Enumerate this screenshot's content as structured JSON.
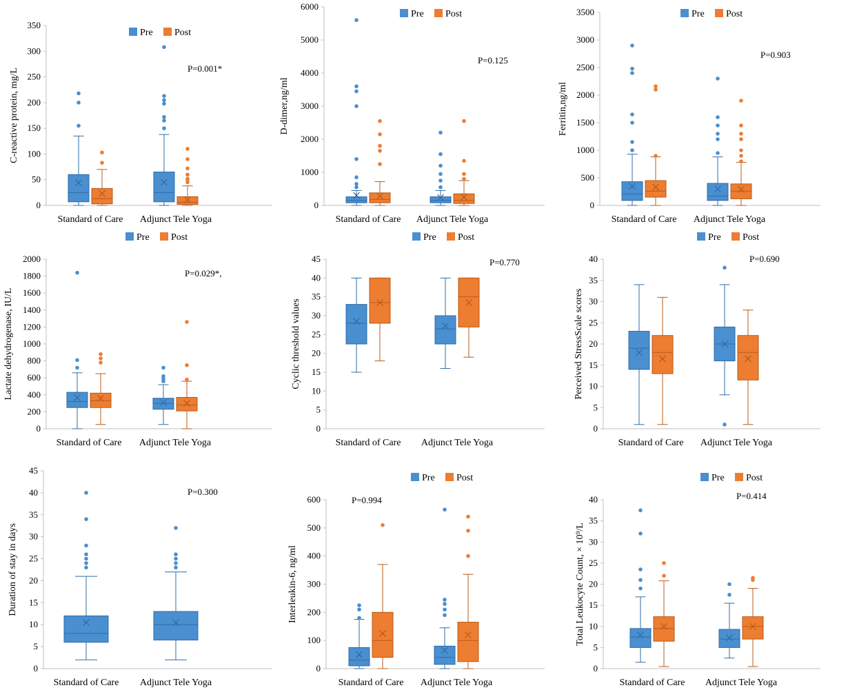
{
  "figure_title": "",
  "colors": {
    "pre": "#4a8fcf",
    "post": "#ed7d31",
    "pre_stroke": "#2e6ca8",
    "post_stroke": "#b85a1a"
  },
  "chart_data": [
    {
      "id": "crp",
      "type": "box",
      "ylabel": "C-reactive protein, mg/L",
      "ylim": [
        0,
        350
      ],
      "yticks": [
        0,
        50,
        100,
        150,
        200,
        250,
        300,
        350
      ],
      "categories": [
        "Standard of Care",
        "Adjunct Tele Yoga"
      ],
      "legend": [
        "Pre",
        "Post"
      ],
      "pvalue": "P=0.001*",
      "series": [
        {
          "name": "Pre",
          "boxes": [
            {
              "min": 0,
              "q1": 7,
              "median": 25,
              "q3": 60,
              "max": 135,
              "mean": 44,
              "outliers": [
                155,
                200,
                218
              ]
            },
            {
              "min": 0,
              "q1": 7,
              "median": 25,
              "q3": 65,
              "max": 138,
              "mean": 45,
              "outliers": [
                150,
                165,
                172,
                198,
                205,
                213,
                308
              ]
            }
          ]
        },
        {
          "name": "Post",
          "boxes": [
            {
              "min": 0,
              "q1": 3,
              "median": 13,
              "q3": 33,
              "max": 70,
              "mean": 23,
              "outliers": [
                83,
                103
              ]
            },
            {
              "min": 0,
              "q1": 2,
              "median": 6,
              "q3": 17,
              "max": 38,
              "mean": 11,
              "outliers": [
                45,
                50,
                52,
                60,
                72,
                90,
                110
              ]
            }
          ]
        }
      ]
    },
    {
      "id": "ddimer",
      "type": "box",
      "ylabel": "D-dimer,ng/ml",
      "ylim": [
        0,
        6000
      ],
      "yticks": [
        0,
        1000,
        2000,
        3000,
        4000,
        5000,
        6000
      ],
      "categories": [
        "Standard of Care",
        "Adjunct Tele Yoga"
      ],
      "legend": [
        "Pre",
        "Post"
      ],
      "pvalue": "P=0.125",
      "series": [
        {
          "name": "Pre",
          "boxes": [
            {
              "min": 0,
              "q1": 80,
              "median": 150,
              "q3": 260,
              "max": 450,
              "mean": 300,
              "outliers": [
                550,
                650,
                850,
                1400,
                3000,
                3450,
                3600,
                5600
              ]
            },
            {
              "min": 0,
              "q1": 80,
              "median": 150,
              "q3": 260,
              "max": 450,
              "mean": 240,
              "outliers": [
                550,
                750,
                950,
                1200,
                1550,
                2200
              ]
            }
          ]
        },
        {
          "name": "Post",
          "boxes": [
            {
              "min": 0,
              "q1": 80,
              "median": 180,
              "q3": 380,
              "max": 720,
              "mean": 280,
              "outliers": [
                1250,
                1650,
                1800,
                2150,
                2550
              ]
            },
            {
              "min": 0,
              "q1": 60,
              "median": 150,
              "q3": 350,
              "max": 750,
              "mean": 250,
              "outliers": [
                800,
                950,
                1350,
                2550
              ]
            }
          ]
        }
      ]
    },
    {
      "id": "ferritin",
      "type": "box",
      "ylabel": "Ferritin,ng/ml",
      "ylim": [
        0,
        3500
      ],
      "yticks": [
        0,
        500,
        1000,
        1500,
        2000,
        2500,
        3000,
        3500
      ],
      "categories": [
        "Standard of Care",
        "Adjunct Tele Yoga"
      ],
      "legend": [
        "Pre",
        "Post"
      ],
      "pvalue": "P=0.903",
      "series": [
        {
          "name": "Pre",
          "boxes": [
            {
              "min": 0,
              "q1": 90,
              "median": 210,
              "q3": 430,
              "max": 930,
              "mean": 350,
              "outliers": [
                1000,
                1150,
                1500,
                1650,
                2400,
                2480,
                2900
              ]
            },
            {
              "min": 0,
              "q1": 90,
              "median": 170,
              "q3": 400,
              "max": 880,
              "mean": 300,
              "outliers": [
                950,
                1200,
                1300,
                1450,
                1600,
                2300
              ]
            }
          ]
        },
        {
          "name": "Post",
          "boxes": [
            {
              "min": 0,
              "q1": 150,
              "median": 260,
              "q3": 450,
              "max": 880,
              "mean": 330,
              "outliers": [
                900,
                2100,
                2160
              ]
            },
            {
              "min": 0,
              "q1": 120,
              "median": 260,
              "q3": 390,
              "max": 780,
              "mean": 290,
              "outliers": [
                800,
                900,
                1000,
                1200,
                1300,
                1450,
                1900
              ]
            }
          ]
        }
      ]
    },
    {
      "id": "ldh",
      "type": "box",
      "ylabel": "Lactate dehydrogenase, IU/L",
      "ylim": [
        0,
        2000
      ],
      "yticks": [
        0,
        200,
        400,
        600,
        800,
        1000,
        1200,
        1400,
        1600,
        1800,
        2000
      ],
      "categories": [
        "Standard of Care",
        "Adjunct Tele Yoga"
      ],
      "legend": [
        "Pre",
        "Post"
      ],
      "pvalue": "P=0.029*,",
      "series": [
        {
          "name": "Pre",
          "boxes": [
            {
              "min": 0,
              "q1": 250,
              "median": 320,
              "q3": 430,
              "max": 660,
              "mean": 365,
              "outliers": [
                720,
                810,
                1840
              ]
            },
            {
              "min": 50,
              "q1": 230,
              "median": 300,
              "q3": 360,
              "max": 520,
              "mean": 310,
              "outliers": [
                560,
                590,
                620,
                720
              ]
            }
          ]
        },
        {
          "name": "Post",
          "boxes": [
            {
              "min": 50,
              "q1": 250,
              "median": 330,
              "q3": 420,
              "max": 650,
              "mean": 360,
              "outliers": [
                780,
                830,
                880
              ]
            },
            {
              "min": 0,
              "q1": 210,
              "median": 280,
              "q3": 370,
              "max": 560,
              "mean": 300,
              "outliers": [
                580,
                750,
                1260
              ]
            }
          ]
        }
      ]
    },
    {
      "id": "ct",
      "type": "box",
      "ylabel": "Cyclic threshold values",
      "ylim": [
        0,
        45
      ],
      "yticks": [
        0,
        5,
        10,
        15,
        20,
        25,
        30,
        35,
        40,
        45
      ],
      "categories": [
        "Standard of Care",
        "Adjunct Tele Yoga"
      ],
      "legend": [
        "Pre",
        "Post"
      ],
      "pvalue": "P=0.770",
      "series": [
        {
          "name": "Pre",
          "boxes": [
            {
              "min": 15,
              "q1": 22.5,
              "median": 28,
              "q3": 33,
              "max": 40,
              "mean": 28.5,
              "outliers": []
            },
            {
              "min": 16,
              "q1": 22.5,
              "median": 26.5,
              "q3": 30,
              "max": 40,
              "mean": 27.3,
              "outliers": []
            }
          ]
        },
        {
          "name": "Post",
          "boxes": [
            {
              "min": 18,
              "q1": 28,
              "median": 33.5,
              "q3": 40,
              "max": 40,
              "mean": 33.5,
              "outliers": []
            },
            {
              "min": 19,
              "q1": 27,
              "median": 35,
              "q3": 40,
              "max": 40,
              "mean": 33.5,
              "outliers": []
            }
          ]
        }
      ]
    },
    {
      "id": "pss",
      "type": "box",
      "ylabel": "Perceived StressScale scores",
      "ylim": [
        0,
        40
      ],
      "yticks": [
        0,
        5,
        10,
        15,
        20,
        25,
        30,
        35,
        40
      ],
      "categories": [
        "Standard of Care",
        "Adjunct Tele Yoga"
      ],
      "legend": [
        "Pre",
        "Post"
      ],
      "pvalue": "P=0.690",
      "series": [
        {
          "name": "Pre",
          "boxes": [
            {
              "min": 1,
              "q1": 14,
              "median": 19,
              "q3": 23,
              "max": 34,
              "mean": 18,
              "outliers": []
            },
            {
              "min": 8,
              "q1": 16,
              "median": 20,
              "q3": 24,
              "max": 34,
              "mean": 20,
              "outliers": [
                1,
                38
              ]
            }
          ]
        },
        {
          "name": "Post",
          "boxes": [
            {
              "min": 1,
              "q1": 13,
              "median": 18,
              "q3": 22,
              "max": 31,
              "mean": 16.5,
              "outliers": []
            },
            {
              "min": 1,
              "q1": 11.5,
              "median": 18,
              "q3": 22,
              "max": 28,
              "mean": 16.5,
              "outliers": []
            }
          ]
        }
      ]
    },
    {
      "id": "stay",
      "type": "box",
      "ylabel": "Duration of stay in days",
      "ylim": [
        0,
        45
      ],
      "yticks": [
        0,
        5,
        10,
        15,
        20,
        25,
        30,
        35,
        40,
        45
      ],
      "categories": [
        "Standard of Care",
        "Adjunct Tele Yoga"
      ],
      "legend": [],
      "pvalue": "P=0.300",
      "series": [
        {
          "name": "Pre",
          "boxes": [
            {
              "min": 2,
              "q1": 6,
              "median": 8,
              "q3": 12,
              "max": 21,
              "mean": 10.5,
              "outliers": [
                23,
                24,
                25,
                26,
                28,
                34,
                40
              ]
            },
            {
              "min": 2,
              "q1": 6.5,
              "median": 10,
              "q3": 13,
              "max": 22,
              "mean": 10.5,
              "outliers": [
                23,
                24,
                25,
                26,
                32
              ]
            }
          ]
        }
      ]
    },
    {
      "id": "il6",
      "type": "box",
      "ylabel": "Interleukin-6, ng/ml",
      "ylim": [
        0,
        600
      ],
      "yticks": [
        0,
        100,
        200,
        300,
        400,
        500,
        600
      ],
      "categories": [
        "Standard of Care",
        "Adjunct Tele Yoga"
      ],
      "legend": [
        "Pre",
        "Post"
      ],
      "pvalue": "P=0.994",
      "series": [
        {
          "name": "Pre",
          "boxes": [
            {
              "min": 0,
              "q1": 10,
              "median": 30,
              "q3": 75,
              "max": 175,
              "mean": 50,
              "outliers": [
                180,
                210,
                225
              ]
            },
            {
              "min": 0,
              "q1": 15,
              "median": 40,
              "q3": 80,
              "max": 145,
              "mean": 65,
              "outliers": [
                190,
                210,
                230,
                245,
                565
              ]
            }
          ]
        },
        {
          "name": "Post",
          "boxes": [
            {
              "min": 0,
              "q1": 40,
              "median": 100,
              "q3": 200,
              "max": 370,
              "mean": 125,
              "outliers": [
                510
              ]
            },
            {
              "min": 0,
              "q1": 25,
              "median": 100,
              "q3": 165,
              "max": 335,
              "mean": 120,
              "outliers": [
                400,
                490,
                540
              ]
            }
          ]
        }
      ]
    },
    {
      "id": "tlc",
      "type": "box",
      "ylabel": "Total Leukocyte Count, × 10⁹/L",
      "ylim": [
        0,
        40
      ],
      "yticks": [
        0,
        5,
        10,
        15,
        20,
        25,
        30,
        35,
        40
      ],
      "categories": [
        "Standard of Care",
        "Adjunct Tele Yoga"
      ],
      "legend": [
        "Pre",
        "Post"
      ],
      "pvalue": "P=0.414",
      "series": [
        {
          "name": "Pre",
          "boxes": [
            {
              "min": 1.5,
              "q1": 5,
              "median": 7.5,
              "q3": 9.5,
              "max": 17,
              "mean": 8,
              "outliers": [
                19,
                21,
                23.5,
                32,
                37.5
              ]
            },
            {
              "min": 2.5,
              "q1": 5,
              "median": 7,
              "q3": 9.3,
              "max": 15.5,
              "mean": 7.3,
              "outliers": [
                17.5,
                20
              ]
            }
          ]
        },
        {
          "name": "Post",
          "boxes": [
            {
              "min": 0.5,
              "q1": 6.5,
              "median": 9.5,
              "q3": 12.3,
              "max": 20.8,
              "mean": 10,
              "outliers": [
                22,
                25
              ]
            },
            {
              "min": 0.5,
              "q1": 7,
              "median": 10,
              "q3": 12.3,
              "max": 19,
              "mean": 10,
              "outliers": [
                21,
                21.5
              ]
            }
          ]
        }
      ]
    }
  ]
}
